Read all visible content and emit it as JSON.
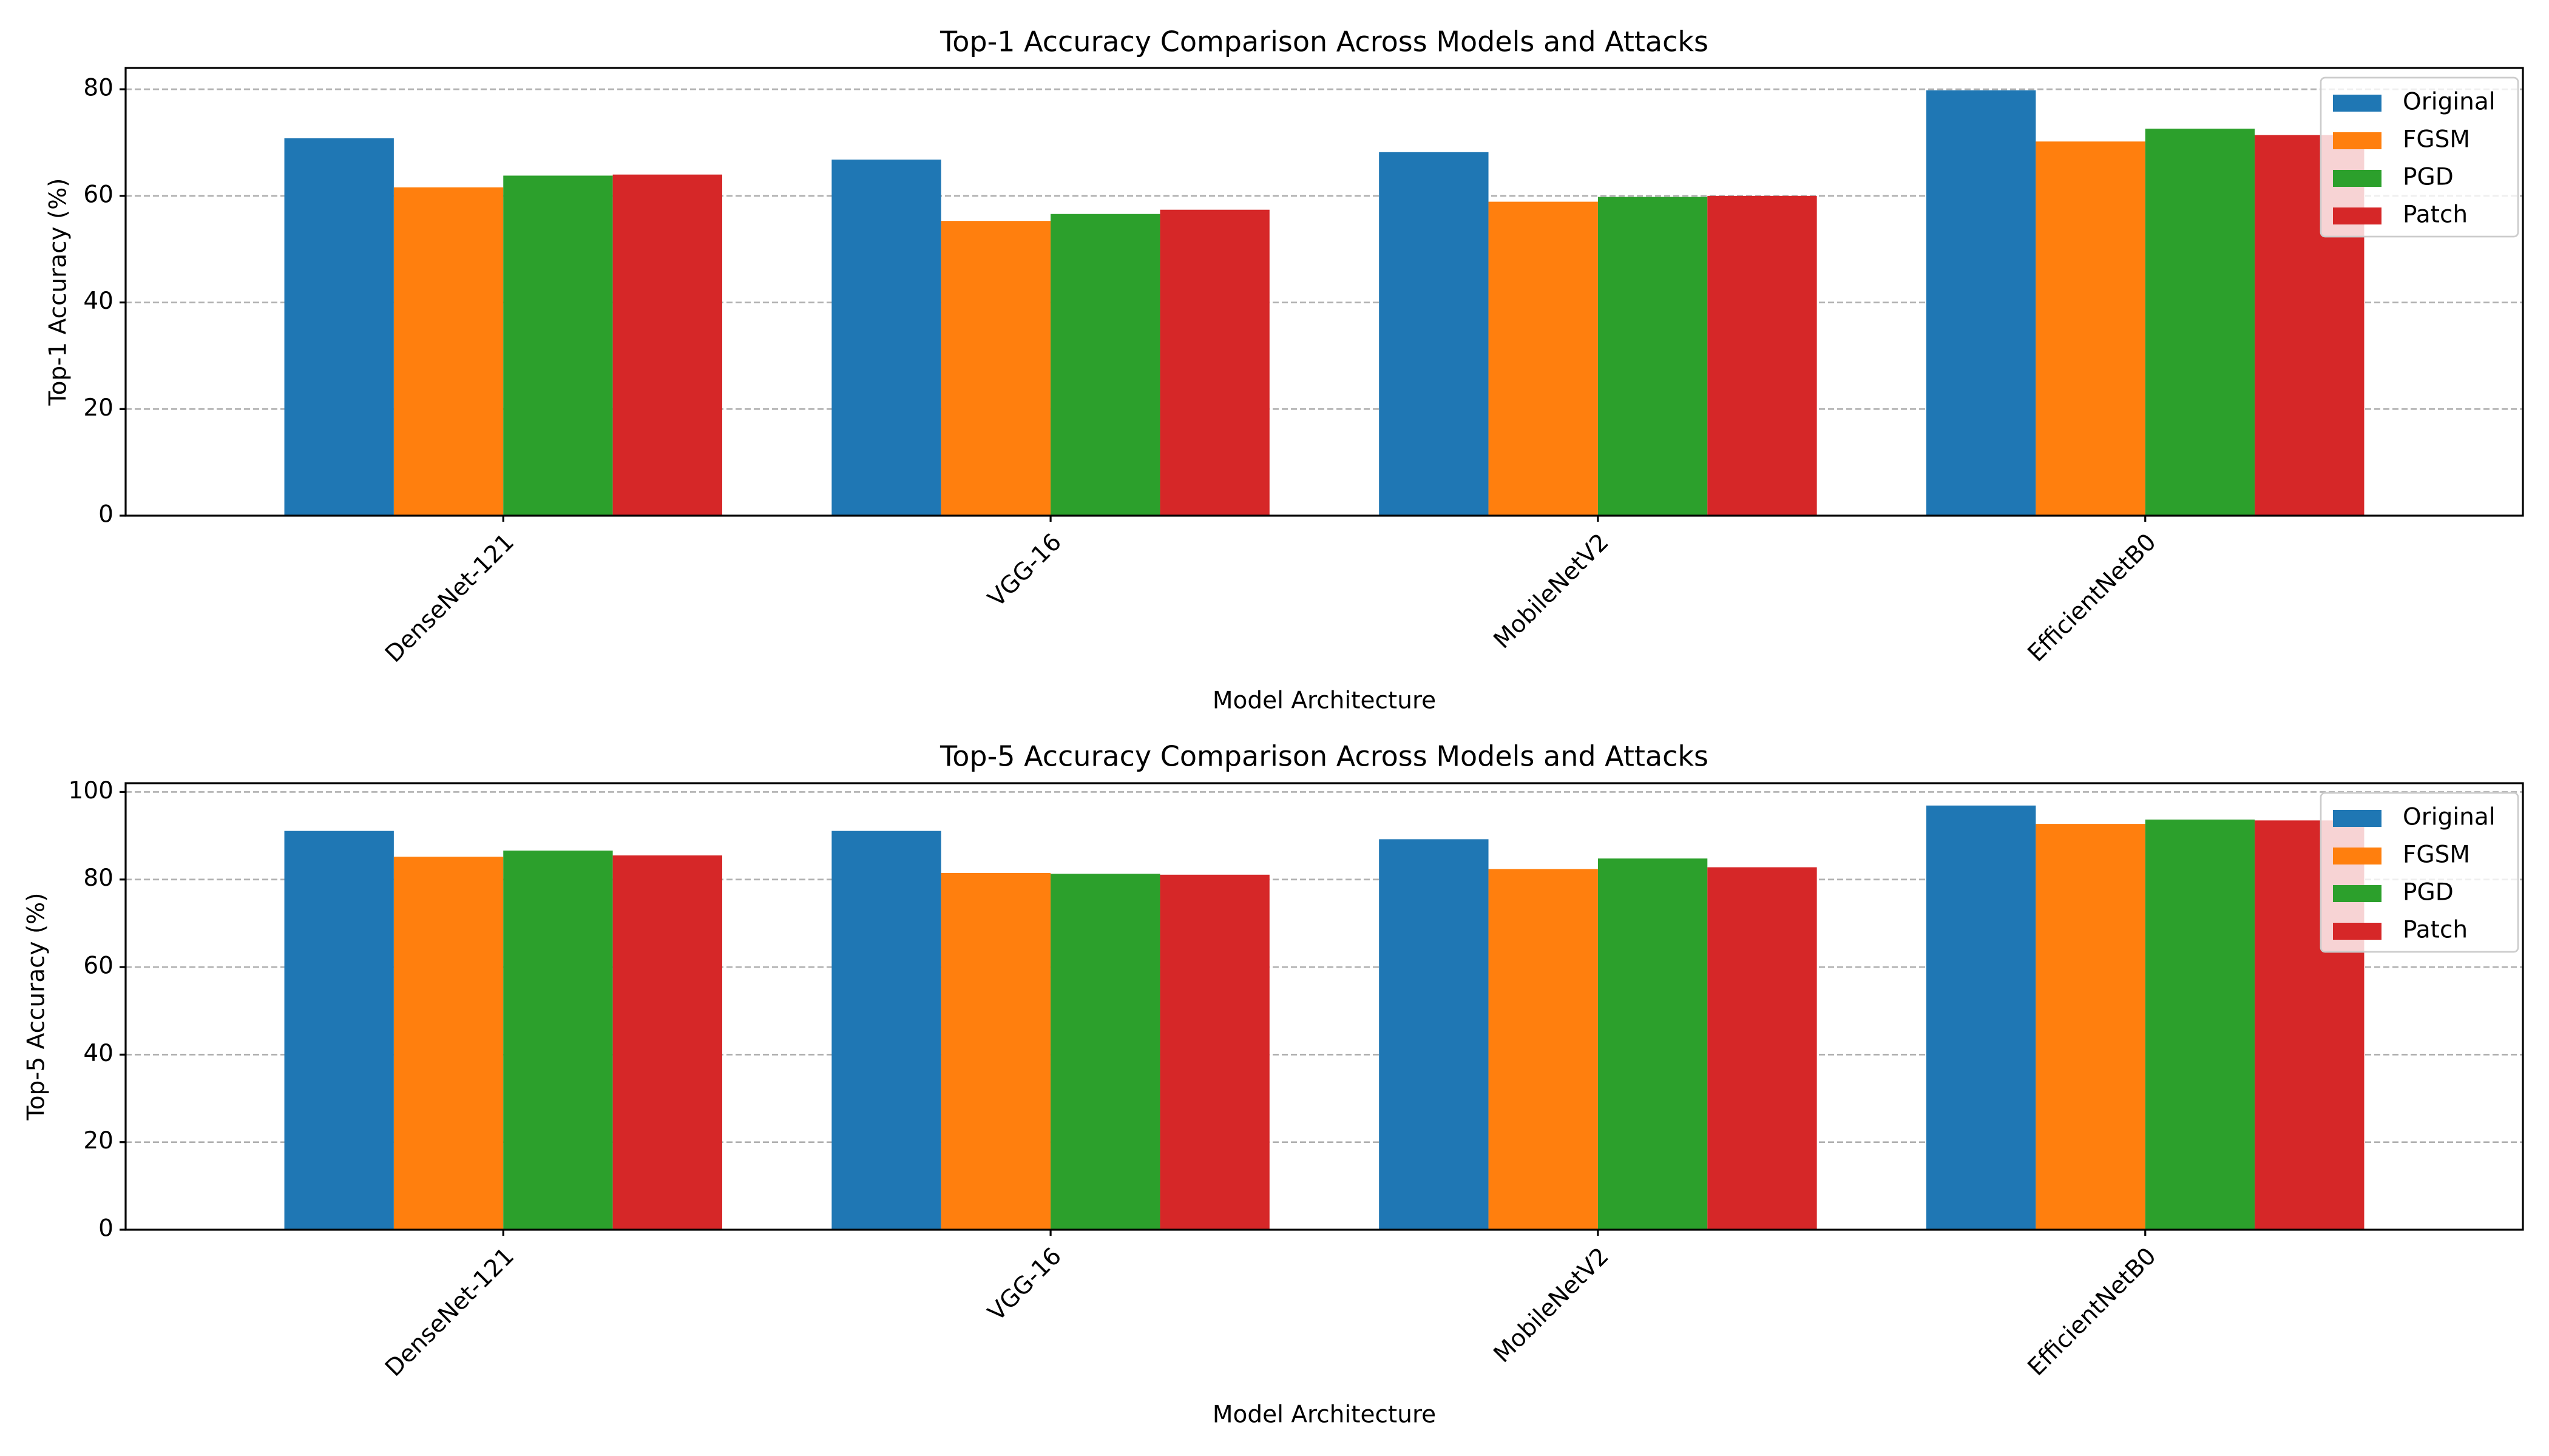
{
  "chart_data": [
    {
      "type": "bar",
      "title": "Top-1 Accuracy Comparison Across Models and Attacks",
      "xlabel": "Model Architecture",
      "ylabel": "Top-1 Accuracy (%)",
      "categories": [
        "DenseNet-121",
        "VGG-16",
        "MobileNetV2",
        "EfficientNetB0"
      ],
      "ylim": [
        0,
        84
      ],
      "yticks": [
        0,
        20,
        40,
        60,
        80
      ],
      "grid": "y-dashed",
      "legend_position": "top-right",
      "series": [
        {
          "name": "Original",
          "color": "#1f77b4",
          "values": [
            70.8,
            66.8,
            68.2,
            79.8
          ]
        },
        {
          "name": "FGSM",
          "color": "#ff7f0e",
          "values": [
            61.6,
            55.3,
            58.9,
            70.2
          ]
        },
        {
          "name": "PGD",
          "color": "#2ca02c",
          "values": [
            63.8,
            56.6,
            59.8,
            72.6
          ]
        },
        {
          "name": "Patch",
          "color": "#d62728",
          "values": [
            64.0,
            57.4,
            60.0,
            71.4
          ]
        }
      ]
    },
    {
      "type": "bar",
      "title": "Top-5 Accuracy Comparison Across Models and Attacks",
      "xlabel": "Model Architecture",
      "ylabel": "Top-5 Accuracy (%)",
      "categories": [
        "DenseNet-121",
        "VGG-16",
        "MobileNetV2",
        "EfficientNetB0"
      ],
      "ylim": [
        0,
        102
      ],
      "yticks": [
        0,
        20,
        40,
        60,
        80,
        100
      ],
      "grid": "y-dashed",
      "legend_position": "top-right",
      "series": [
        {
          "name": "Original",
          "color": "#1f77b4",
          "values": [
            91.1,
            91.1,
            89.2,
            96.9
          ]
        },
        {
          "name": "FGSM",
          "color": "#ff7f0e",
          "values": [
            85.2,
            81.5,
            82.4,
            92.7
          ]
        },
        {
          "name": "PGD",
          "color": "#2ca02c",
          "values": [
            86.6,
            81.3,
            84.8,
            93.7
          ]
        },
        {
          "name": "Patch",
          "color": "#d62728",
          "values": [
            85.5,
            81.1,
            82.8,
            93.5
          ]
        }
      ]
    }
  ]
}
